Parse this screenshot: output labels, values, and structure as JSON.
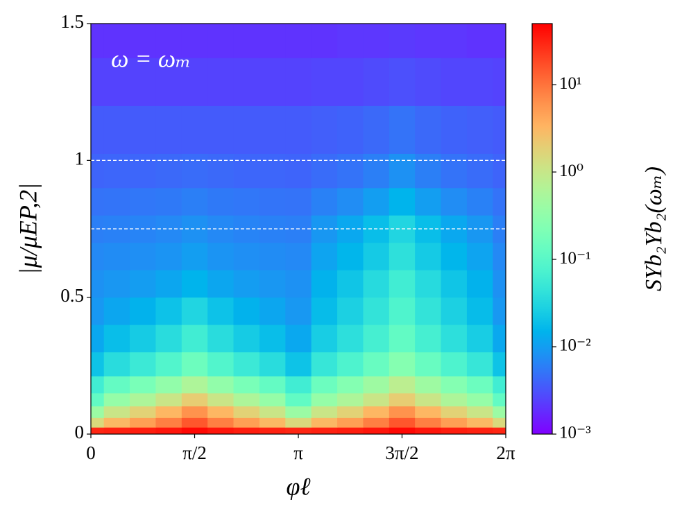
{
  "chart_data": {
    "type": "heatmap",
    "annotation": "ω = ωₘ",
    "xlabel": "φℓ",
    "ylabel": "|μ/μEP,2|",
    "colorbar_label": "SΥb₂Υb₂(ωₘ)",
    "colormap": "rainbow",
    "color_scale": "log",
    "hline_color": "#ffffff",
    "hlines": [
      1,
      0.75
    ],
    "xlim": [
      0,
      6.283
    ],
    "ylim": [
      0,
      1.5
    ],
    "clim": [
      0.001,
      50
    ],
    "xticks": [
      0,
      {
        "value": 1.571,
        "label": "π/2"
      },
      {
        "value": 3.142,
        "label": "π"
      },
      {
        "value": 4.712,
        "label": "3π/2"
      },
      {
        "value": 6.283,
        "label": "2π"
      }
    ],
    "yticks": [
      0,
      0.5,
      1,
      1.5
    ],
    "cticks": [
      {
        "value": 0.001,
        "label": "10⁻³"
      },
      {
        "value": 0.01,
        "label": "10⁻²"
      },
      {
        "value": 0.1,
        "label": "10⁻¹"
      },
      {
        "value": 1,
        "label": "10⁰"
      },
      {
        "value": 10,
        "label": "10¹"
      }
    ],
    "x": [
      0,
      0.393,
      0.785,
      1.178,
      1.571,
      1.963,
      2.356,
      2.749,
      3.142,
      3.534,
      3.927,
      4.32,
      4.712,
      5.105,
      5.498,
      5.89,
      6.283
    ],
    "y": [
      0.01,
      0.04,
      0.08,
      0.125,
      0.175,
      0.25,
      0.35,
      0.45,
      0.55,
      0.65,
      0.75,
      0.85,
      0.95,
      1.1,
      1.3,
      1.45
    ],
    "z": [
      [
        30,
        31.8,
        33.8,
        37.5,
        45,
        37.5,
        33.8,
        31.8,
        30,
        31.8,
        33.8,
        37.5,
        45,
        37.5,
        33.8,
        31.8,
        30
      ],
      [
        1.5,
        3.1,
        4.9,
        8.3,
        15,
        8.3,
        4.9,
        3.1,
        1.5,
        3.1,
        4.9,
        8.3,
        15,
        8.3,
        4.9,
        3.1,
        1.5
      ],
      [
        0.4,
        1.07,
        1.8,
        3.2,
        6,
        3.2,
        1.8,
        1.07,
        0.4,
        1.07,
        1.8,
        3.2,
        6,
        3.2,
        1.8,
        1.07,
        0.4
      ],
      [
        0.12,
        0.35,
        0.59,
        1.06,
        2,
        1.06,
        0.59,
        0.35,
        0.12,
        0.35,
        0.59,
        1.06,
        2,
        1.06,
        0.59,
        0.35,
        0.12
      ],
      [
        0.06,
        0.125,
        0.195,
        0.33,
        0.6,
        0.33,
        0.195,
        0.125,
        0.06,
        0.149,
        0.245,
        0.43,
        0.8,
        0.43,
        0.245,
        0.149,
        0.06
      ],
      [
        0.02,
        0.036,
        0.053,
        0.085,
        0.15,
        0.085,
        0.053,
        0.036,
        0.02,
        0.048,
        0.078,
        0.135,
        0.25,
        0.135,
        0.078,
        0.048,
        0.02
      ],
      [
        0.012,
        0.018,
        0.024,
        0.036,
        0.06,
        0.036,
        0.024,
        0.018,
        0.012,
        0.025,
        0.039,
        0.066,
        0.12,
        0.066,
        0.039,
        0.025,
        0.012
      ],
      [
        0.009,
        0.0115,
        0.0143,
        0.0195,
        0.03,
        0.0195,
        0.0143,
        0.0115,
        0.009,
        0.0175,
        0.027,
        0.0445,
        0.08,
        0.0445,
        0.027,
        0.0175,
        0.009
      ],
      [
        0.008,
        0.0088,
        0.0098,
        0.0115,
        0.015,
        0.0115,
        0.0098,
        0.0088,
        0.008,
        0.0142,
        0.021,
        0.034,
        0.06,
        0.034,
        0.021,
        0.0142,
        0.008
      ],
      [
        0.007,
        0.0074,
        0.0078,
        0.0085,
        0.01,
        0.0085,
        0.0078,
        0.0074,
        0.007,
        0.011,
        0.0153,
        0.0235,
        0.04,
        0.0235,
        0.0153,
        0.011,
        0.007
      ],
      [
        0.006,
        0.0062,
        0.0065,
        0.007,
        0.008,
        0.007,
        0.0065,
        0.0062,
        0.006,
        0.0089,
        0.012,
        0.018,
        0.03,
        0.018,
        0.012,
        0.0089,
        0.006
      ],
      [
        0.005,
        0.0051,
        0.0053,
        0.0055,
        0.006,
        0.0055,
        0.0053,
        0.0051,
        0.005,
        0.0062,
        0.0075,
        0.01,
        0.015,
        0.01,
        0.0075,
        0.0062,
        0.005
      ],
      [
        0.004,
        0.0041,
        0.0041,
        0.0043,
        0.0045,
        0.0043,
        0.0041,
        0.0041,
        0.004,
        0.0045,
        0.005,
        0.006,
        0.008,
        0.006,
        0.005,
        0.0045,
        0.004
      ],
      [
        0.0035,
        0.0035,
        0.0035,
        0.0035,
        0.0035,
        0.0035,
        0.0035,
        0.0035,
        0.0035,
        0.0037,
        0.0039,
        0.0043,
        0.005,
        0.0043,
        0.0039,
        0.0037,
        0.0035
      ],
      [
        0.0025,
        0.0025,
        0.0025,
        0.0025,
        0.0025,
        0.0025,
        0.0025,
        0.0025,
        0.0025,
        0.0026,
        0.0026,
        0.0028,
        0.003,
        0.0028,
        0.0026,
        0.0026,
        0.0025
      ],
      [
        0.002,
        0.002,
        0.002,
        0.002,
        0.002,
        0.002,
        0.002,
        0.002,
        0.002,
        0.002,
        0.0021,
        0.0021,
        0.0022,
        0.0021,
        0.0021,
        0.002,
        0.002
      ]
    ]
  }
}
